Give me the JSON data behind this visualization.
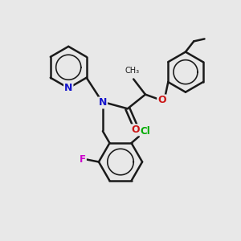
{
  "bg_color": "#e8e8e8",
  "bond_color": "#1a1a1a",
  "bond_width": 1.8,
  "N_color": "#1515cc",
  "O_color": "#cc1515",
  "F_color": "#cc00cc",
  "Cl_color": "#00aa00",
  "font_size": 8.5,
  "figsize": [
    3.0,
    3.0
  ],
  "dpi": 100,
  "xlim": [
    0,
    10
  ],
  "ylim": [
    0,
    10
  ]
}
